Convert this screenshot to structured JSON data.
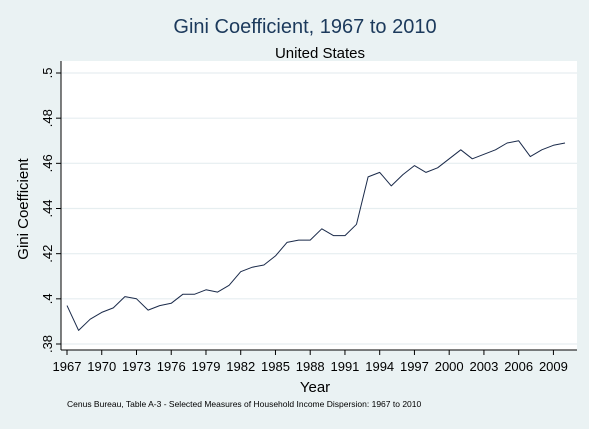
{
  "chart_data": {
    "type": "line",
    "title": "Gini Coefficient, 1967 to 2010",
    "subtitle": "United States",
    "xlabel": "Year",
    "ylabel": "Gini Coefficient",
    "xlim": [
      1967,
      2010
    ],
    "ylim": [
      0.38,
      0.5
    ],
    "x_ticks": [
      1967,
      1970,
      1973,
      1976,
      1979,
      1982,
      1985,
      1988,
      1991,
      1994,
      1997,
      2000,
      2003,
      2006,
      2009
    ],
    "x_tick_labels": [
      "1967",
      "1970",
      "1973",
      "1976",
      "1979",
      "1982",
      "1985",
      "1988",
      "1991",
      "1994",
      "1997",
      "2000",
      "2003",
      "2006",
      "2009"
    ],
    "y_ticks": [
      0.38,
      0.4,
      0.42,
      0.44,
      0.46,
      0.48,
      0.5
    ],
    "y_tick_labels": [
      ".38",
      ".4",
      ".42",
      ".44",
      ".46",
      ".48",
      ".5"
    ],
    "grid": true,
    "line_color": "#1a2a4a",
    "x": [
      1967,
      1968,
      1969,
      1970,
      1971,
      1972,
      1973,
      1974,
      1975,
      1976,
      1977,
      1978,
      1979,
      1980,
      1981,
      1982,
      1983,
      1984,
      1985,
      1986,
      1987,
      1988,
      1989,
      1990,
      1991,
      1992,
      1993,
      1994,
      1995,
      1996,
      1997,
      1998,
      1999,
      2000,
      2001,
      2002,
      2003,
      2004,
      2005,
      2006,
      2007,
      2008,
      2009,
      2010
    ],
    "values": [
      0.397,
      0.386,
      0.391,
      0.394,
      0.396,
      0.401,
      0.4,
      0.395,
      0.397,
      0.398,
      0.402,
      0.402,
      0.404,
      0.403,
      0.406,
      0.412,
      0.414,
      0.415,
      0.419,
      0.425,
      0.426,
      0.426,
      0.431,
      0.428,
      0.428,
      0.433,
      0.454,
      0.456,
      0.45,
      0.455,
      0.459,
      0.456,
      0.458,
      0.462,
      0.466,
      0.462,
      0.464,
      0.466,
      0.469,
      0.47,
      0.463,
      0.466,
      0.468,
      0.469
    ],
    "note": "Cenus Bureau, Table A-3 - Selected Measures of Household Income Dispersion: 1967 to 2010"
  }
}
